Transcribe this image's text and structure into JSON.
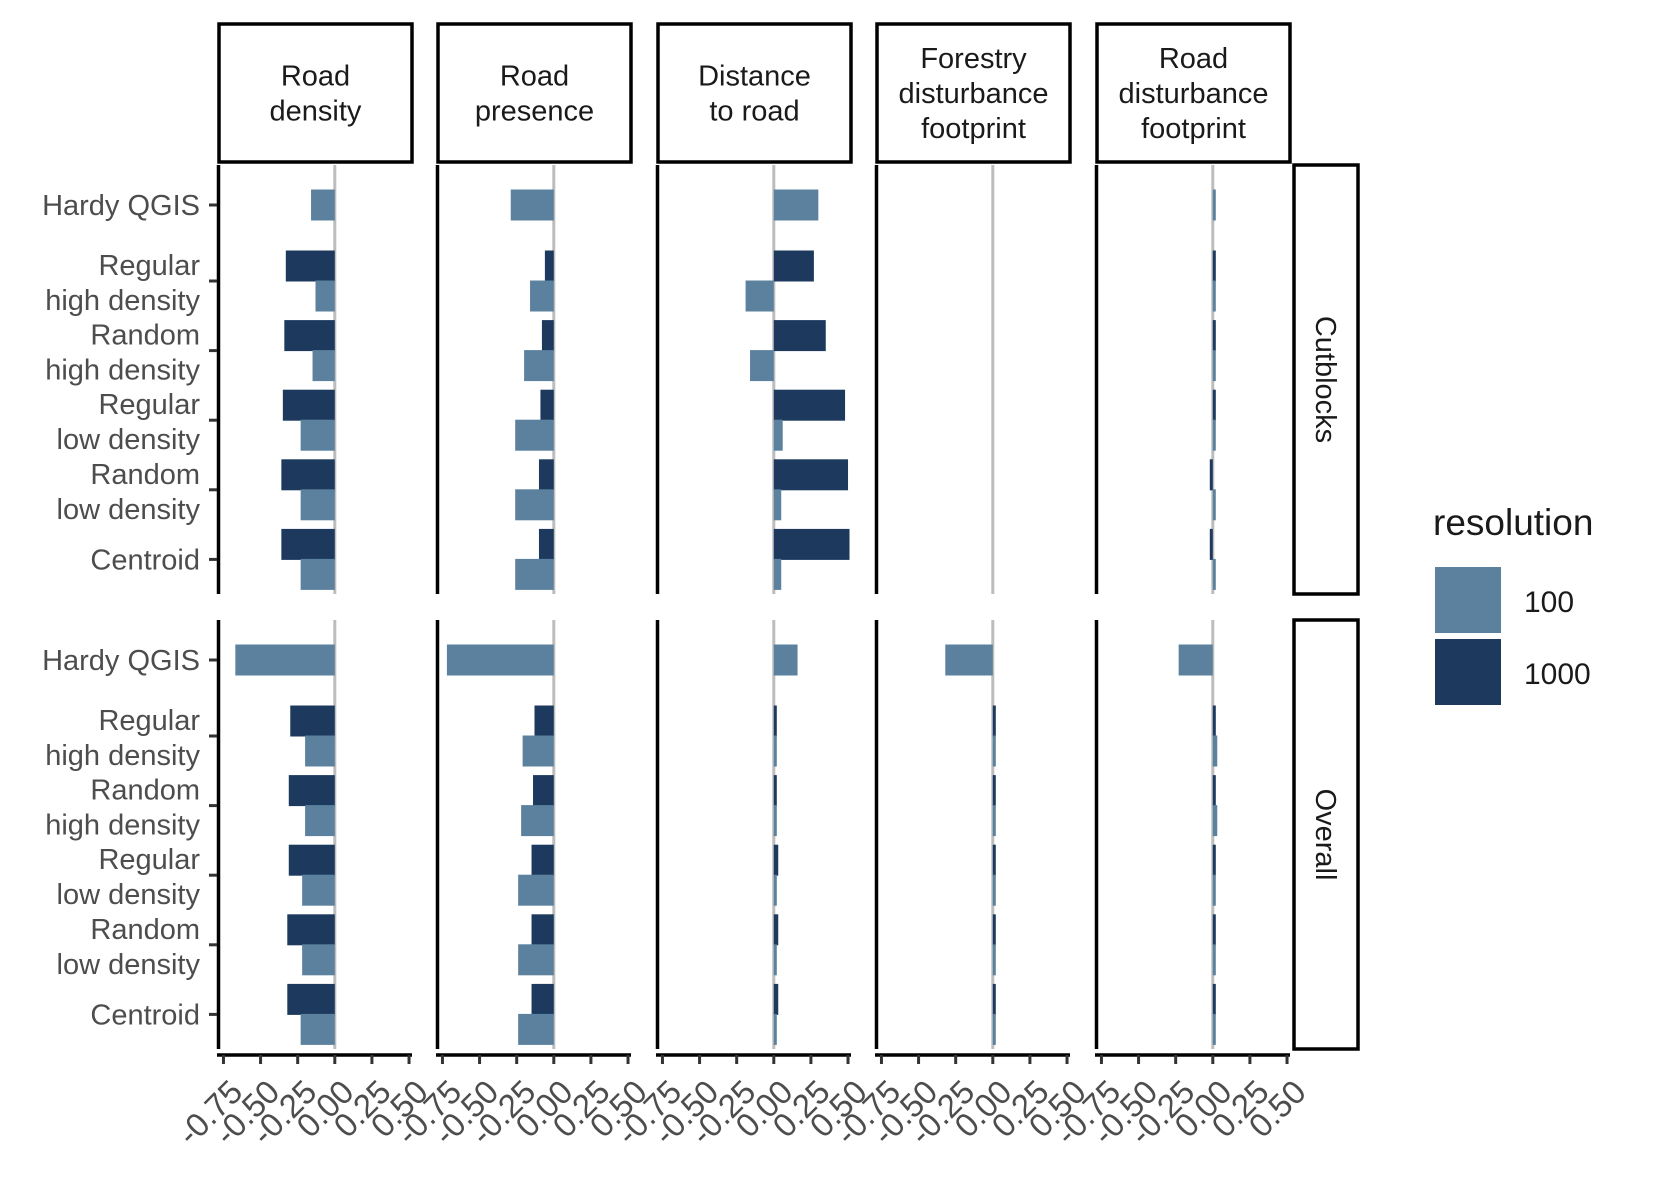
{
  "colors": {
    "res100": "#5b819e",
    "res1000": "#1d3a5e",
    "zero_line": "#bdbdbd",
    "axis": "#000000"
  },
  "legend": {
    "title": "resolution",
    "labels": [
      "100",
      "1000"
    ]
  },
  "chart_data": {
    "type": "bar",
    "orientation": "horizontal",
    "facet_columns": [
      "Road\ndensity",
      "Road\npresence",
      "Distance\nto road",
      "Forestry\ndisturbance\nfootprint",
      "Road\ndisturbance\nfootprint"
    ],
    "facet_rows": [
      "Cutblocks",
      "Overall"
    ],
    "categories": [
      "Hardy QGIS",
      "Regular\nhigh density",
      "Random\nhigh density",
      "Regular\nlow density",
      "Random\nlow density",
      "Centroid"
    ],
    "x_ticks": [
      "-0.75",
      "-0.50",
      "-0.25",
      "0.00",
      "0.25",
      "0.50"
    ],
    "xlim": [
      -0.78,
      0.52
    ],
    "series": [
      {
        "name": "100",
        "values": {
          "Cutblocks": [
            [
              -0.16,
              -0.13,
              -0.15,
              -0.23,
              -0.23,
              -0.23
            ],
            [
              -0.29,
              -0.16,
              -0.2,
              -0.26,
              -0.26,
              -0.26
            ],
            [
              0.3,
              -0.19,
              -0.16,
              0.06,
              0.05,
              0.05
            ],
            [
              null,
              null,
              null,
              null,
              null,
              null
            ],
            [
              0.01,
              0.01,
              0.01,
              0.01,
              0.01,
              0.01
            ]
          ],
          "Overall": [
            [
              -0.67,
              -0.2,
              -0.2,
              -0.22,
              -0.22,
              -0.23
            ],
            [
              -0.72,
              -0.21,
              -0.22,
              -0.24,
              -0.24,
              -0.24
            ],
            [
              0.16,
              0.0,
              0.0,
              0.0,
              0.0,
              0.0
            ],
            [
              -0.32,
              0.0,
              0.0,
              0.0,
              0.0,
              0.0
            ],
            [
              -0.23,
              0.03,
              0.03,
              0.01,
              0.01,
              0.01
            ]
          ]
        }
      },
      {
        "name": "1000",
        "values": {
          "Cutblocks": [
            [
              null,
              -0.33,
              -0.34,
              -0.35,
              -0.36,
              -0.36
            ],
            [
              null,
              -0.06,
              -0.08,
              -0.09,
              -0.1,
              -0.1
            ],
            [
              null,
              0.27,
              0.35,
              0.48,
              0.5,
              0.51
            ],
            [
              null,
              null,
              null,
              null,
              null,
              null
            ],
            [
              null,
              0.0,
              0.0,
              0.0,
              -0.01,
              -0.01
            ]
          ],
          "Overall": [
            [
              null,
              -0.3,
              -0.31,
              -0.31,
              -0.32,
              -0.32
            ],
            [
              null,
              -0.13,
              -0.14,
              -0.15,
              -0.15,
              -0.15
            ],
            [
              null,
              0.02,
              0.02,
              0.03,
              0.03,
              0.03
            ],
            [
              null,
              0.01,
              0.01,
              0.0,
              0.0,
              0.0
            ],
            [
              null,
              0.0,
              0.0,
              0.0,
              0.0,
              0.0
            ]
          ]
        }
      }
    ],
    "legend_position": "right",
    "grid": false
  }
}
